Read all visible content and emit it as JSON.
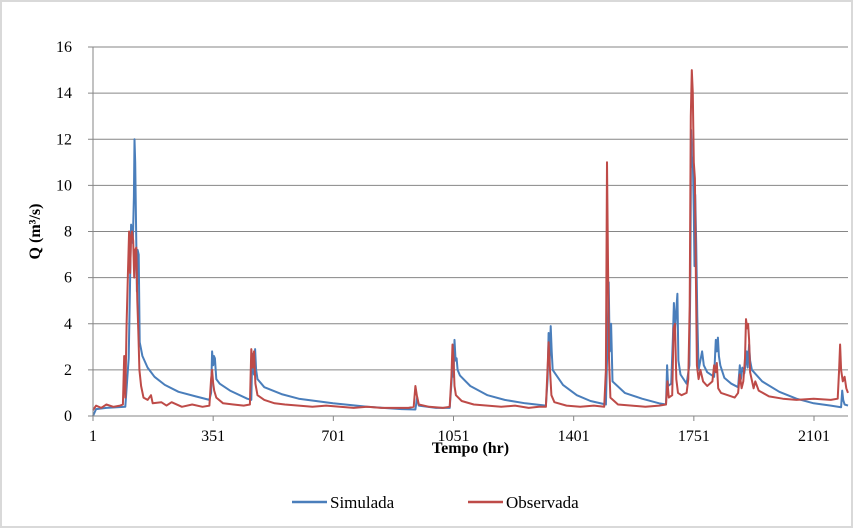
{
  "chart_data": {
    "type": "line",
    "title": "",
    "xlabel": "Tempo (hr)",
    "ylabel": "Q (m³/s)",
    "xlim": [
      1,
      2200
    ],
    "ylim": [
      0,
      16
    ],
    "x_ticks": [
      1,
      351,
      701,
      1051,
      1401,
      1751,
      2101
    ],
    "y_ticks": [
      0,
      2,
      4,
      6,
      8,
      10,
      12,
      14,
      16
    ],
    "grid": "horizontal",
    "legend_position": "bottom",
    "series": [
      {
        "name": "Simulada",
        "color": "#4a7ebb",
        "points": [
          [
            1,
            0.0
          ],
          [
            10,
            0.3
          ],
          [
            40,
            0.35
          ],
          [
            95,
            0.4
          ],
          [
            105,
            2.5
          ],
          [
            112,
            8.3
          ],
          [
            117,
            7.5
          ],
          [
            120,
            9.5
          ],
          [
            122,
            12.0
          ],
          [
            124,
            11.0
          ],
          [
            127,
            7.5
          ],
          [
            129,
            5.4
          ],
          [
            131,
            7.2
          ],
          [
            134,
            7.0
          ],
          [
            137,
            3.2
          ],
          [
            145,
            2.6
          ],
          [
            160,
            2.1
          ],
          [
            180,
            1.7
          ],
          [
            210,
            1.35
          ],
          [
            250,
            1.05
          ],
          [
            300,
            0.85
          ],
          [
            340,
            0.7
          ],
          [
            345,
            1.0
          ],
          [
            348,
            2.8
          ],
          [
            351,
            2.2
          ],
          [
            353,
            2.6
          ],
          [
            356,
            2.5
          ],
          [
            360,
            1.6
          ],
          [
            370,
            1.4
          ],
          [
            400,
            1.1
          ],
          [
            450,
            0.75
          ],
          [
            462,
            0.7
          ],
          [
            465,
            2.7
          ],
          [
            470,
            1.8
          ],
          [
            473,
            2.9
          ],
          [
            476,
            2.0
          ],
          [
            480,
            1.6
          ],
          [
            500,
            1.25
          ],
          [
            550,
            0.95
          ],
          [
            600,
            0.75
          ],
          [
            700,
            0.55
          ],
          [
            800,
            0.4
          ],
          [
            900,
            0.3
          ],
          [
            940,
            0.28
          ],
          [
            945,
            0.8
          ],
          [
            950,
            0.45
          ],
          [
            1000,
            0.35
          ],
          [
            1040,
            0.35
          ],
          [
            1045,
            1.4
          ],
          [
            1048,
            2.2
          ],
          [
            1051,
            1.7
          ],
          [
            1054,
            3.3
          ],
          [
            1057,
            2.4
          ],
          [
            1060,
            2.5
          ],
          [
            1063,
            2.0
          ],
          [
            1070,
            1.75
          ],
          [
            1100,
            1.3
          ],
          [
            1150,
            0.9
          ],
          [
            1200,
            0.7
          ],
          [
            1260,
            0.55
          ],
          [
            1320,
            0.45
          ],
          [
            1325,
            1.6
          ],
          [
            1328,
            3.6
          ],
          [
            1331,
            2.2
          ],
          [
            1334,
            3.9
          ],
          [
            1337,
            2.8
          ],
          [
            1340,
            2.0
          ],
          [
            1370,
            1.35
          ],
          [
            1410,
            0.9
          ],
          [
            1450,
            0.65
          ],
          [
            1495,
            0.5
          ],
          [
            1500,
            3.6
          ],
          [
            1503,
            5.8
          ],
          [
            1506,
            2.8
          ],
          [
            1510,
            4.0
          ],
          [
            1514,
            1.5
          ],
          [
            1550,
            1.0
          ],
          [
            1600,
            0.75
          ],
          [
            1650,
            0.55
          ],
          [
            1670,
            0.5
          ],
          [
            1673,
            2.2
          ],
          [
            1676,
            1.3
          ],
          [
            1685,
            1.4
          ],
          [
            1690,
            3.4
          ],
          [
            1693,
            4.9
          ],
          [
            1696,
            3.7
          ],
          [
            1700,
            4.6
          ],
          [
            1703,
            5.3
          ],
          [
            1706,
            2.4
          ],
          [
            1712,
            1.8
          ],
          [
            1730,
            1.4
          ],
          [
            1738,
            2.2
          ],
          [
            1741,
            6.2
          ],
          [
            1743,
            12.4
          ],
          [
            1746,
            10.8
          ],
          [
            1748,
            11.2
          ],
          [
            1751,
            8.8
          ],
          [
            1753,
            6.5
          ],
          [
            1755,
            9.6
          ],
          [
            1758,
            7.5
          ],
          [
            1761,
            4.3
          ],
          [
            1765,
            2.0
          ],
          [
            1775,
            2.8
          ],
          [
            1780,
            2.2
          ],
          [
            1790,
            1.9
          ],
          [
            1810,
            1.7
          ],
          [
            1815,
            3.3
          ],
          [
            1818,
            2.8
          ],
          [
            1821,
            3.4
          ],
          [
            1824,
            2.6
          ],
          [
            1828,
            2.2
          ],
          [
            1840,
            1.65
          ],
          [
            1860,
            1.4
          ],
          [
            1880,
            1.25
          ],
          [
            1885,
            2.2
          ],
          [
            1888,
            1.6
          ],
          [
            1892,
            2.1
          ],
          [
            1898,
            1.85
          ],
          [
            1902,
            2.3
          ],
          [
            1905,
            2.8
          ],
          [
            1908,
            2.1
          ],
          [
            1912,
            3.1
          ],
          [
            1915,
            2.4
          ],
          [
            1920,
            2.0
          ],
          [
            1950,
            1.5
          ],
          [
            2000,
            1.05
          ],
          [
            2050,
            0.75
          ],
          [
            2100,
            0.55
          ],
          [
            2150,
            0.45
          ],
          [
            2180,
            0.38
          ],
          [
            2183,
            1.1
          ],
          [
            2186,
            0.7
          ],
          [
            2190,
            0.5
          ],
          [
            2200,
            0.45
          ]
        ]
      },
      {
        "name": "Observada",
        "color": "#be4b48",
        "points": [
          [
            1,
            0.25
          ],
          [
            10,
            0.45
          ],
          [
            25,
            0.35
          ],
          [
            40,
            0.5
          ],
          [
            60,
            0.4
          ],
          [
            80,
            0.45
          ],
          [
            88,
            0.5
          ],
          [
            92,
            2.6
          ],
          [
            95,
            0.8
          ],
          [
            99,
            4.0
          ],
          [
            103,
            6.3
          ],
          [
            106,
            8.0
          ],
          [
            109,
            6.2
          ],
          [
            112,
            7.8
          ],
          [
            115,
            8.0
          ],
          [
            118,
            7.6
          ],
          [
            121,
            6.0
          ],
          [
            124,
            7.2
          ],
          [
            127,
            7.3
          ],
          [
            130,
            5.0
          ],
          [
            133,
            3.7
          ],
          [
            136,
            2.0
          ],
          [
            141,
            1.3
          ],
          [
            148,
            0.8
          ],
          [
            160,
            0.7
          ],
          [
            170,
            0.9
          ],
          [
            175,
            0.55
          ],
          [
            200,
            0.6
          ],
          [
            215,
            0.45
          ],
          [
            230,
            0.6
          ],
          [
            260,
            0.4
          ],
          [
            290,
            0.5
          ],
          [
            320,
            0.4
          ],
          [
            340,
            0.45
          ],
          [
            345,
            1.6
          ],
          [
            348,
            2.0
          ],
          [
            351,
            1.4
          ],
          [
            354,
            1.1
          ],
          [
            360,
            0.8
          ],
          [
            380,
            0.55
          ],
          [
            410,
            0.5
          ],
          [
            440,
            0.45
          ],
          [
            458,
            0.5
          ],
          [
            462,
            2.9
          ],
          [
            466,
            2.1
          ],
          [
            470,
            2.8
          ],
          [
            474,
            1.4
          ],
          [
            480,
            0.9
          ],
          [
            500,
            0.7
          ],
          [
            530,
            0.55
          ],
          [
            560,
            0.5
          ],
          [
            600,
            0.45
          ],
          [
            640,
            0.4
          ],
          [
            680,
            0.45
          ],
          [
            720,
            0.4
          ],
          [
            760,
            0.35
          ],
          [
            800,
            0.4
          ],
          [
            840,
            0.35
          ],
          [
            880,
            0.35
          ],
          [
            920,
            0.35
          ],
          [
            935,
            0.4
          ],
          [
            940,
            1.3
          ],
          [
            944,
            0.9
          ],
          [
            950,
            0.5
          ],
          [
            980,
            0.4
          ],
          [
            1020,
            0.35
          ],
          [
            1040,
            0.4
          ],
          [
            1045,
            1.7
          ],
          [
            1048,
            3.1
          ],
          [
            1051,
            2.5
          ],
          [
            1054,
            1.3
          ],
          [
            1058,
            0.9
          ],
          [
            1075,
            0.65
          ],
          [
            1110,
            0.5
          ],
          [
            1150,
            0.45
          ],
          [
            1190,
            0.4
          ],
          [
            1230,
            0.45
          ],
          [
            1270,
            0.35
          ],
          [
            1300,
            0.4
          ],
          [
            1320,
            0.4
          ],
          [
            1325,
            2.1
          ],
          [
            1328,
            3.2
          ],
          [
            1332,
            2.0
          ],
          [
            1336,
            0.9
          ],
          [
            1345,
            0.6
          ],
          [
            1380,
            0.45
          ],
          [
            1420,
            0.4
          ],
          [
            1460,
            0.45
          ],
          [
            1490,
            0.4
          ],
          [
            1495,
            2.0
          ],
          [
            1498,
            11.0
          ],
          [
            1501,
            6.6
          ],
          [
            1504,
            2.5
          ],
          [
            1508,
            0.8
          ],
          [
            1530,
            0.5
          ],
          [
            1570,
            0.45
          ],
          [
            1610,
            0.4
          ],
          [
            1650,
            0.45
          ],
          [
            1670,
            0.5
          ],
          [
            1674,
            1.5
          ],
          [
            1678,
            0.8
          ],
          [
            1688,
            0.9
          ],
          [
            1692,
            3.8
          ],
          [
            1696,
            4.0
          ],
          [
            1700,
            1.6
          ],
          [
            1705,
            1.0
          ],
          [
            1715,
            0.9
          ],
          [
            1730,
            1.0
          ],
          [
            1735,
            1.6
          ],
          [
            1739,
            4.8
          ],
          [
            1742,
            13.0
          ],
          [
            1745,
            15.0
          ],
          [
            1748,
            14.0
          ],
          [
            1751,
            11.0
          ],
          [
            1754,
            10.3
          ],
          [
            1757,
            6.0
          ],
          [
            1760,
            2.2
          ],
          [
            1765,
            1.6
          ],
          [
            1770,
            2.0
          ],
          [
            1778,
            1.5
          ],
          [
            1790,
            1.3
          ],
          [
            1805,
            1.5
          ],
          [
            1810,
            2.2
          ],
          [
            1815,
            1.9
          ],
          [
            1818,
            2.3
          ],
          [
            1822,
            1.2
          ],
          [
            1830,
            1.0
          ],
          [
            1850,
            0.9
          ],
          [
            1870,
            0.8
          ],
          [
            1880,
            1.0
          ],
          [
            1885,
            1.8
          ],
          [
            1890,
            1.2
          ],
          [
            1895,
            1.5
          ],
          [
            1900,
            2.5
          ],
          [
            1903,
            4.2
          ],
          [
            1906,
            3.8
          ],
          [
            1909,
            4.0
          ],
          [
            1912,
            3.3
          ],
          [
            1915,
            1.9
          ],
          [
            1925,
            1.2
          ],
          [
            1930,
            1.5
          ],
          [
            1940,
            1.1
          ],
          [
            1970,
            0.85
          ],
          [
            2010,
            0.75
          ],
          [
            2050,
            0.7
          ],
          [
            2100,
            0.75
          ],
          [
            2150,
            0.7
          ],
          [
            2170,
            0.75
          ],
          [
            2174,
            2.0
          ],
          [
            2177,
            3.1
          ],
          [
            2180,
            2.0
          ],
          [
            2185,
            1.5
          ],
          [
            2190,
            1.7
          ],
          [
            2195,
            1.2
          ],
          [
            2200,
            1.0
          ]
        ]
      }
    ]
  }
}
